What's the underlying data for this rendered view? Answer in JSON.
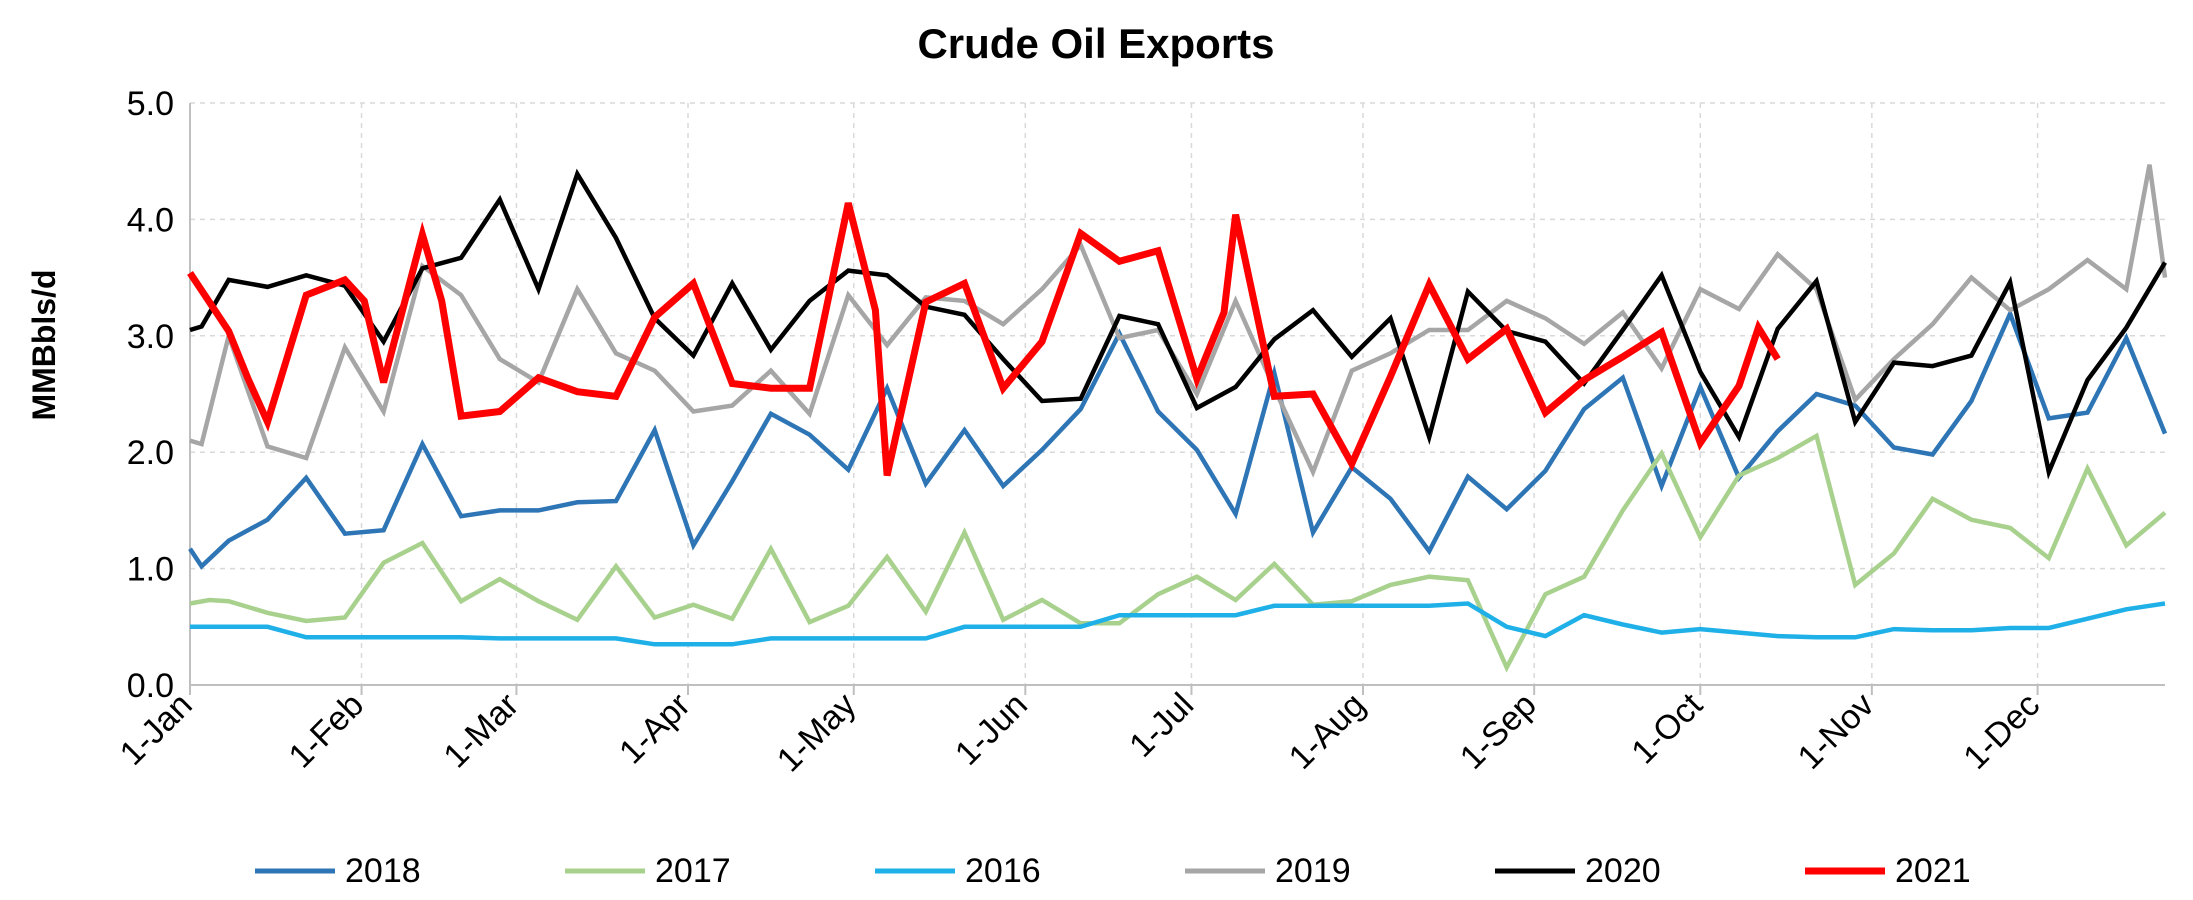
{
  "chart_data": {
    "type": "line",
    "title": "Crude Oil Exports",
    "xlabel": "",
    "ylabel": "MMBbls/d",
    "ylim": [
      0,
      5
    ],
    "yticks": [
      "0.0",
      "1.0",
      "2.0",
      "3.0",
      "4.0",
      "5.0"
    ],
    "xlim": [
      1,
      52
    ],
    "xticks": [
      {
        "label": "1-Jan",
        "week": 1
      },
      {
        "label": "1-Feb",
        "week": 5.43
      },
      {
        "label": "1-Mar",
        "week": 9.43
      },
      {
        "label": "1-Apr",
        "week": 13.86
      },
      {
        "label": "1-May",
        "week": 18.14
      },
      {
        "label": "1-Jun",
        "week": 22.57
      },
      {
        "label": "1-Jul",
        "week": 26.86
      },
      {
        "label": "1-Aug",
        "week": 31.29
      },
      {
        "label": "1-Sep",
        "week": 35.71
      },
      {
        "label": "1-Oct",
        "week": 40
      },
      {
        "label": "1-Nov",
        "week": 44.43
      },
      {
        "label": "1-Dec",
        "week": 48.71
      }
    ],
    "grid": true,
    "legend_position": "bottom",
    "series": [
      {
        "name": "2018",
        "color": "#2e75b6",
        "x": [
          1,
          1.3,
          2,
          3,
          4,
          5,
          6,
          7,
          8,
          9,
          10,
          11,
          12,
          13,
          14,
          15,
          16,
          17,
          18,
          19,
          20,
          21,
          22,
          23,
          24,
          25,
          26,
          27,
          28,
          29,
          30,
          31,
          32,
          33,
          34,
          35,
          36,
          37,
          38,
          39,
          40,
          41,
          42,
          43,
          44,
          45,
          46,
          47,
          48,
          49,
          50,
          51,
          52
        ],
        "values": [
          1.17,
          1.02,
          1.24,
          1.42,
          1.78,
          1.3,
          1.33,
          2.07,
          1.45,
          1.5,
          1.5,
          1.57,
          1.58,
          2.19,
          1.2,
          1.75,
          2.33,
          2.15,
          1.85,
          2.55,
          1.73,
          2.19,
          1.71,
          2.02,
          2.37,
          3.02,
          2.35,
          2.02,
          1.47,
          2.68,
          1.31,
          1.87,
          1.6,
          1.15,
          1.79,
          1.51,
          1.84,
          2.37,
          2.64,
          1.71,
          2.56,
          1.78,
          2.18,
          2.5,
          2.4,
          2.04,
          1.98,
          2.44,
          3.19,
          2.29,
          2.34,
          2.98,
          2.16
        ]
      },
      {
        "name": "2017",
        "color": "#a9d18e",
        "x": [
          1,
          1.5,
          2,
          3,
          4,
          5,
          6,
          7,
          8,
          9,
          10,
          11,
          12,
          13,
          14,
          15,
          16,
          17,
          18,
          19,
          20,
          21,
          22,
          23,
          24,
          25,
          26,
          27,
          28,
          29,
          30,
          31,
          32,
          33,
          34,
          35,
          36,
          37,
          38,
          39,
          40,
          41,
          42,
          43,
          44,
          45,
          46,
          47,
          48,
          49,
          50,
          51,
          52
        ],
        "values": [
          0.7,
          0.73,
          0.72,
          0.62,
          0.55,
          0.58,
          1.05,
          1.22,
          0.72,
          0.91,
          0.72,
          0.56,
          1.02,
          0.58,
          0.69,
          0.57,
          1.17,
          0.54,
          0.68,
          1.1,
          0.63,
          1.31,
          0.56,
          0.73,
          0.53,
          0.53,
          0.78,
          0.93,
          0.73,
          1.04,
          0.69,
          0.72,
          0.86,
          0.93,
          0.9,
          0.15,
          0.78,
          0.93,
          1.5,
          1.99,
          1.27,
          1.8,
          1.95,
          2.14,
          0.86,
          1.13,
          1.6,
          1.42,
          1.35,
          1.09,
          1.86,
          1.2,
          1.48
        ]
      },
      {
        "name": "2016",
        "color": "#1fb0e8",
        "x": [
          1,
          2,
          3,
          4,
          5,
          6,
          7,
          8,
          9,
          10,
          11,
          12,
          13,
          14,
          15,
          16,
          17,
          18,
          19,
          20,
          21,
          22,
          23,
          24,
          25,
          26,
          27,
          28,
          29,
          30,
          31,
          32,
          33,
          34,
          35,
          36,
          37,
          38,
          39,
          40,
          41,
          42,
          43,
          44,
          45,
          46,
          47,
          48,
          49,
          50,
          51,
          52
        ],
        "values": [
          0.5,
          0.5,
          0.5,
          0.41,
          0.41,
          0.41,
          0.41,
          0.41,
          0.4,
          0.4,
          0.4,
          0.4,
          0.35,
          0.35,
          0.35,
          0.4,
          0.4,
          0.4,
          0.4,
          0.4,
          0.5,
          0.5,
          0.5,
          0.5,
          0.6,
          0.6,
          0.6,
          0.6,
          0.68,
          0.68,
          0.68,
          0.68,
          0.68,
          0.7,
          0.5,
          0.42,
          0.6,
          0.52,
          0.45,
          0.48,
          0.45,
          0.42,
          0.41,
          0.41,
          0.48,
          0.47,
          0.47,
          0.49,
          0.49,
          0.57,
          0.65,
          0.7
        ]
      },
      {
        "name": "2019",
        "color": "#a6a6a6",
        "x": [
          1,
          1.3,
          2,
          3,
          4,
          5,
          6,
          7,
          8,
          9,
          10,
          11,
          12,
          13,
          14,
          15,
          16,
          17,
          18,
          19,
          20,
          21,
          22,
          23,
          24,
          25,
          26,
          27,
          28,
          29,
          30,
          31,
          32,
          33,
          34,
          35,
          36,
          37,
          38,
          39,
          40,
          41,
          42,
          43,
          44,
          45,
          46,
          47,
          48,
          49,
          50,
          51,
          51.6,
          52
        ],
        "values": [
          2.1,
          2.07,
          3.0,
          2.05,
          1.95,
          2.9,
          2.35,
          3.6,
          3.35,
          2.8,
          2.6,
          3.4,
          2.85,
          2.7,
          2.35,
          2.4,
          2.7,
          2.33,
          3.35,
          2.92,
          3.33,
          3.3,
          3.1,
          3.4,
          3.78,
          2.98,
          3.05,
          2.5,
          3.3,
          2.55,
          1.83,
          2.7,
          2.85,
          3.05,
          3.05,
          3.3,
          3.15,
          2.93,
          3.2,
          2.72,
          3.4,
          3.23,
          3.7,
          3.4,
          2.45,
          2.8,
          3.1,
          3.5,
          3.22,
          3.4,
          3.65,
          3.4,
          4.47,
          3.5
        ]
      },
      {
        "name": "2020",
        "color": "#000000",
        "x": [
          1,
          1.3,
          2,
          3,
          4,
          5,
          6,
          7,
          8,
          9,
          10,
          11,
          12,
          13,
          14,
          15,
          16,
          17,
          18,
          19,
          20,
          21,
          22,
          23,
          24,
          25,
          26,
          27,
          28,
          29,
          30,
          31,
          32,
          33,
          34,
          35,
          36,
          37,
          38,
          39,
          40,
          41,
          42,
          43,
          44,
          45,
          46,
          47,
          48,
          49,
          50,
          51,
          52
        ],
        "values": [
          3.05,
          3.08,
          3.48,
          3.42,
          3.52,
          3.43,
          2.95,
          3.58,
          3.67,
          4.17,
          3.4,
          4.39,
          3.84,
          3.15,
          2.83,
          3.45,
          2.88,
          3.3,
          3.56,
          3.52,
          3.25,
          3.18,
          2.8,
          2.44,
          2.46,
          3.17,
          3.1,
          2.38,
          2.56,
          2.97,
          3.22,
          2.82,
          3.15,
          2.13,
          3.38,
          3.04,
          2.95,
          2.59,
          3.05,
          3.52,
          2.69,
          2.13,
          3.06,
          3.47,
          2.26,
          2.77,
          2.74,
          2.83,
          3.46,
          1.83,
          2.62,
          3.07,
          3.63
        ]
      },
      {
        "name": "2021",
        "color": "#ff0000",
        "x": [
          1,
          2,
          2.5,
          3,
          4,
          5,
          5.5,
          6,
          7,
          7.5,
          8,
          9,
          10,
          11,
          12,
          13,
          14,
          15,
          16,
          17,
          18,
          18.7,
          19,
          20,
          21,
          22,
          23,
          24,
          25,
          26,
          27,
          27.7,
          28,
          29,
          30,
          31,
          32,
          33,
          34,
          35,
          36,
          37,
          38,
          39,
          40,
          41,
          41.5,
          42
        ],
        "values": [
          3.54,
          3.04,
          2.63,
          2.26,
          3.35,
          3.48,
          3.3,
          2.6,
          3.87,
          3.3,
          2.31,
          2.35,
          2.64,
          2.52,
          2.48,
          3.16,
          3.45,
          2.59,
          2.55,
          2.55,
          4.14,
          3.22,
          1.8,
          3.29,
          3.45,
          2.55,
          2.95,
          3.88,
          3.64,
          3.73,
          2.63,
          3.2,
          4.04,
          2.48,
          2.5,
          1.9,
          2.65,
          3.44,
          2.8,
          3.06,
          2.34,
          2.62,
          2.82,
          3.03,
          2.08,
          2.57,
          3.07,
          2.8
        ]
      }
    ]
  }
}
